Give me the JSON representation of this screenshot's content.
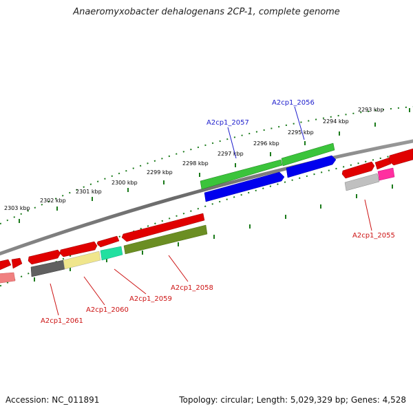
{
  "title": "Anaeromyxobacter dehalogenans 2CP-1, complete genome",
  "footer": {
    "accession": "Accession: NC_011891",
    "topology": "Topology: circular; Length: 5,029,329 bp; Genes: 4,528"
  },
  "kbp_labels": [
    "2303 kbp",
    "2302 kbp",
    "2301 kbp",
    "2300 kbp",
    "2299 kbp",
    "2298 kbp",
    "2297 kbp",
    "2296 kbp",
    "2295 kbp",
    "2294 kbp",
    "2293 kbp"
  ],
  "gene_labels": {
    "a2cp1_2057": "A2cp1_2057",
    "a2cp1_2056": "A2cp1_2056",
    "a2cp1_2055": "A2cp1_2055",
    "a2cp1_2058": "A2cp1_2058",
    "a2cp1_2059": "A2cp1_2059",
    "a2cp1_2060": "A2cp1_2060",
    "a2cp1_2061": "A2cp1_2061"
  },
  "colors": {
    "forward_label": "#1a1acc",
    "reverse_label": "#cc1111",
    "ticks": "#1a7a1a"
  }
}
